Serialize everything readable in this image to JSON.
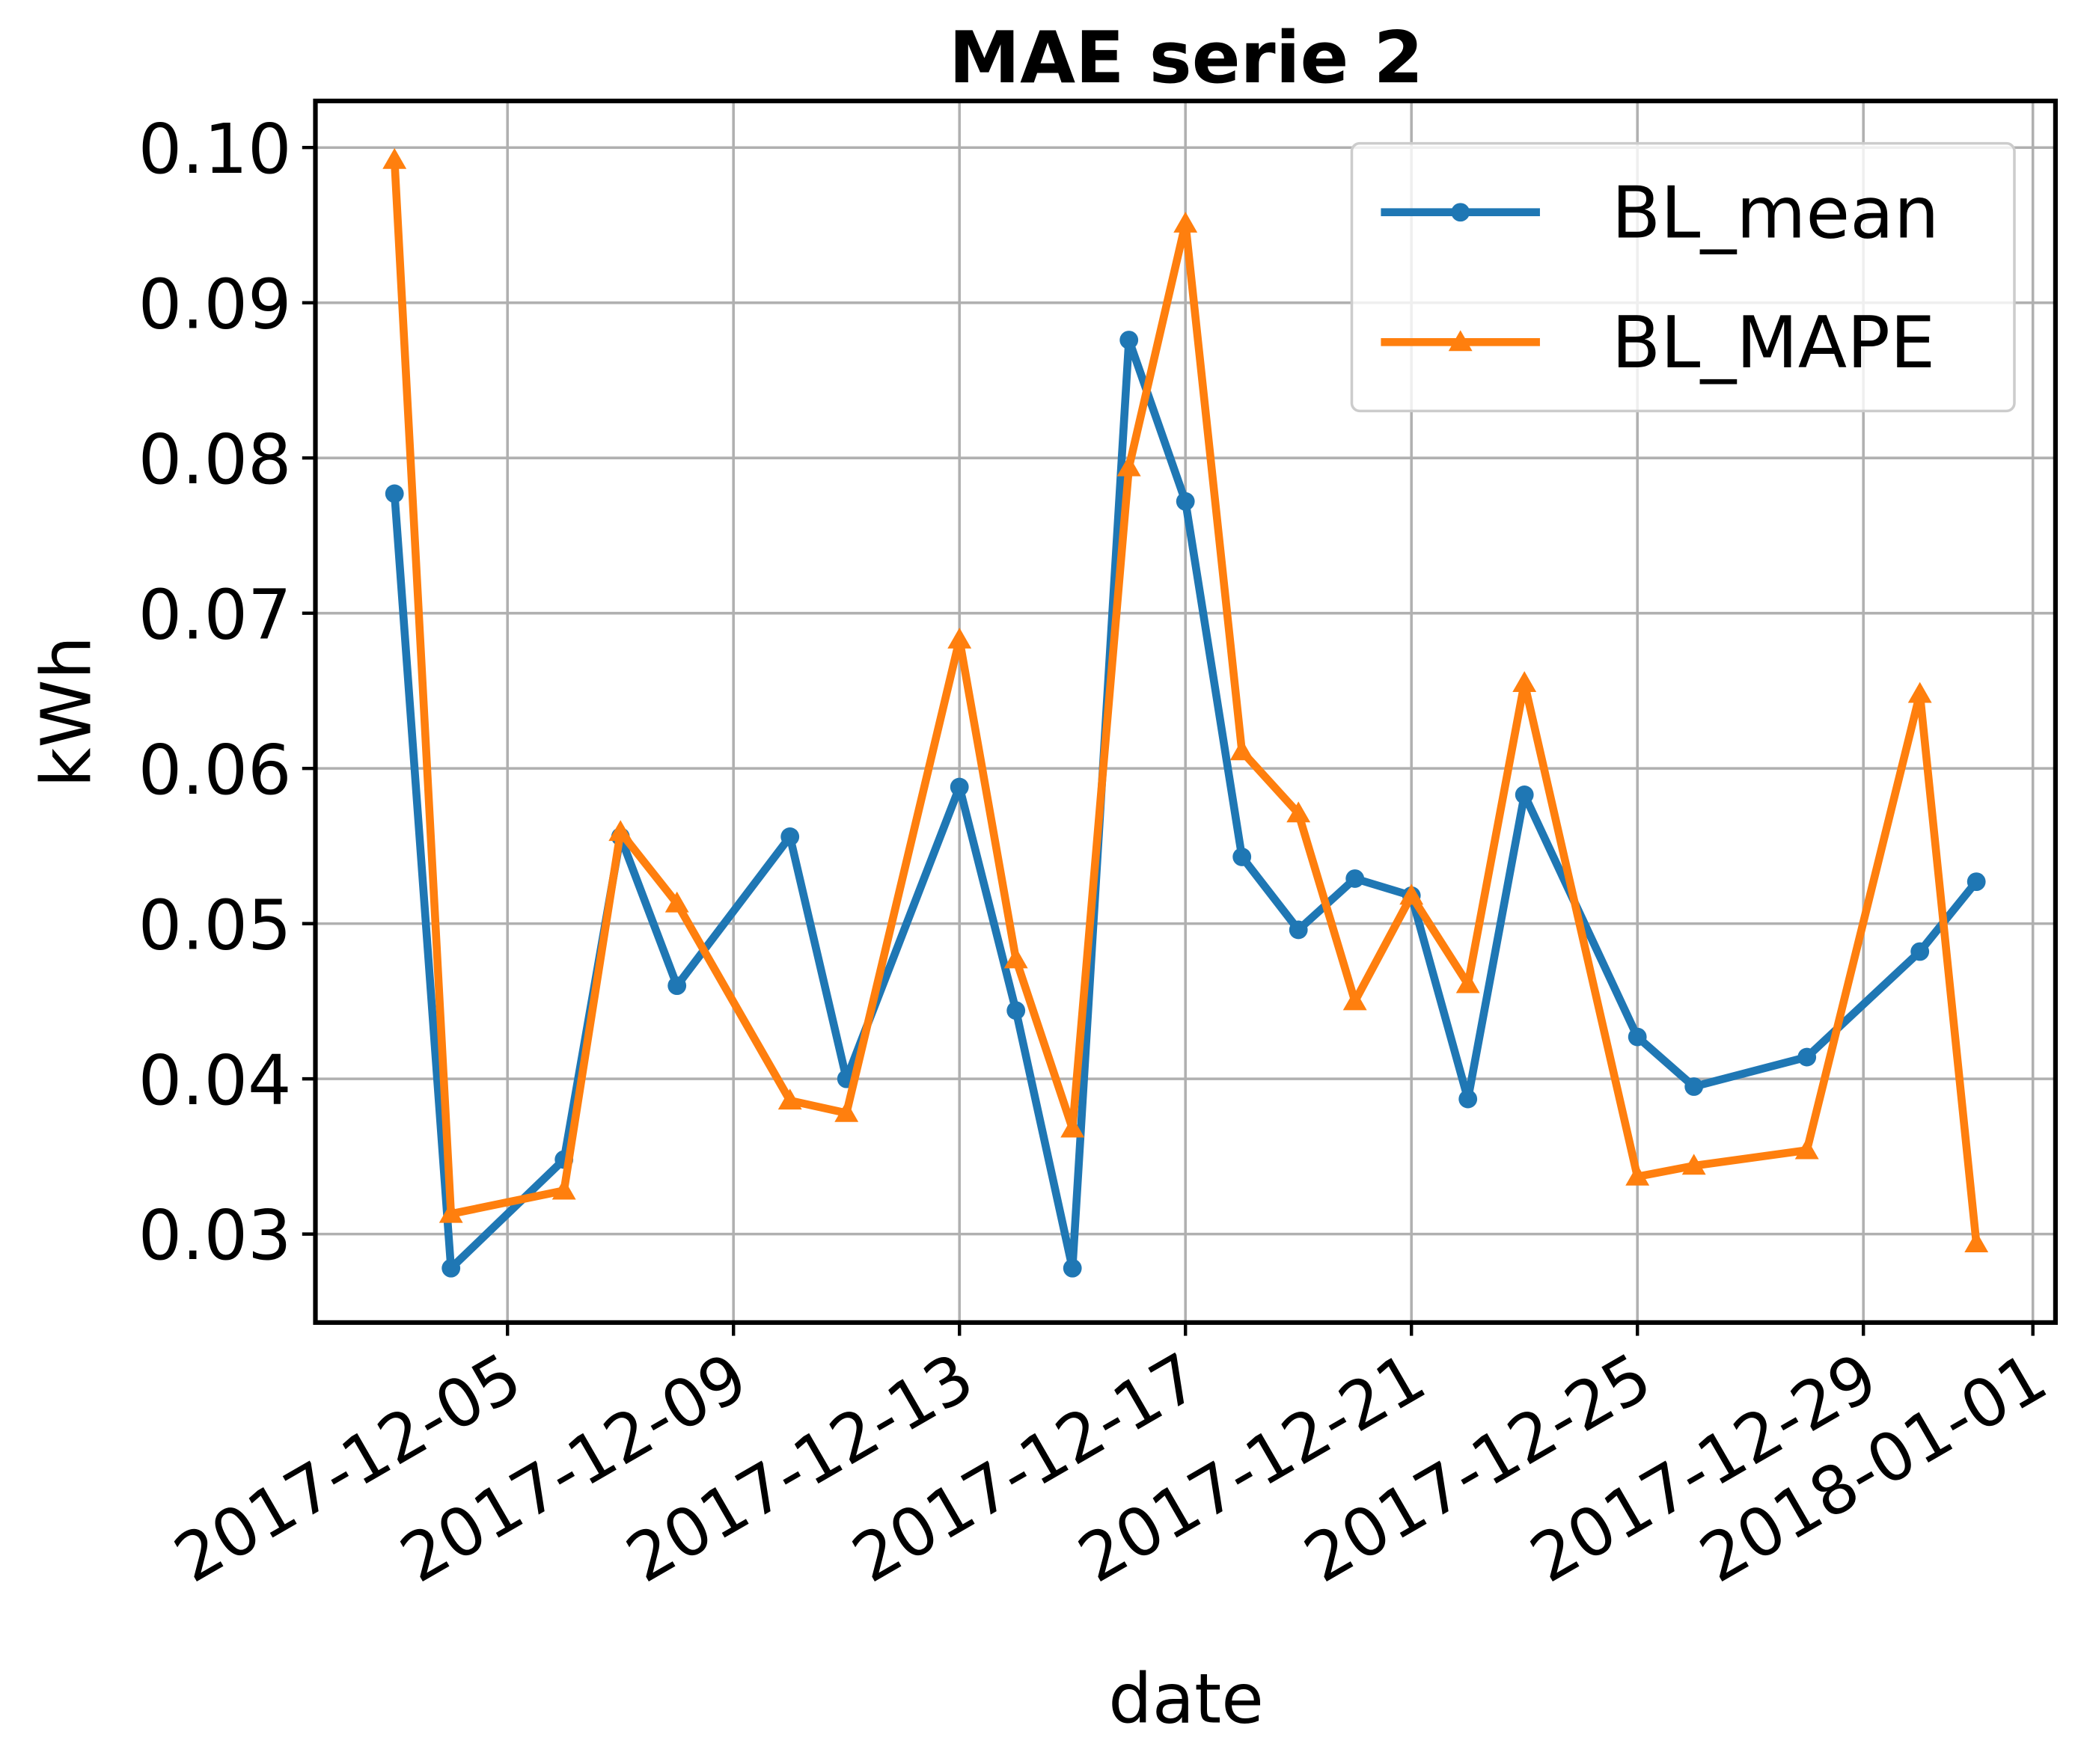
{
  "chart_data": {
    "type": "line",
    "title": "MAE serie 2",
    "xlabel": "date",
    "ylabel": "kWh",
    "x": [
      "2017-12-03",
      "2017-12-04",
      "2017-12-06",
      "2017-12-07",
      "2017-12-08",
      "2017-12-10",
      "2017-12-11",
      "2017-12-13",
      "2017-12-14",
      "2017-12-15",
      "2017-12-16",
      "2017-12-17",
      "2017-12-18",
      "2017-12-19",
      "2017-12-20",
      "2017-12-21",
      "2017-12-22",
      "2017-12-23",
      "2017-12-25",
      "2017-12-26",
      "2017-12-28",
      "2017-12-30",
      "2017-12-31"
    ],
    "series": [
      {
        "name": "BL_mean",
        "color": "#1f77b4",
        "marker": "circle",
        "values": [
          0.0777,
          0.0278,
          0.0348,
          0.0556,
          0.046,
          0.0556,
          0.04,
          0.0588,
          0.0444,
          0.0278,
          0.0876,
          0.0772,
          0.0543,
          0.0496,
          0.0529,
          0.0518,
          0.0387,
          0.0583,
          0.0427,
          0.0395,
          0.0414,
          0.0482,
          0.0527
        ]
      },
      {
        "name": "BL_MAPE",
        "color": "#ff7f0e",
        "marker": "triangle",
        "values": [
          0.0992,
          0.0313,
          0.0328,
          0.0559,
          0.0513,
          0.0386,
          0.0378,
          0.0683,
          0.0477,
          0.0368,
          0.0794,
          0.0951,
          0.0611,
          0.0571,
          0.045,
          0.0518,
          0.0461,
          0.0655,
          0.0337,
          0.0344,
          0.0354,
          0.0648,
          0.0294
        ]
      }
    ],
    "xlim": [
      "2017-12-01T14:24",
      "2018-01-01T09:36"
    ],
    "xticks": [
      "2017-12-05",
      "2017-12-09",
      "2017-12-13",
      "2017-12-17",
      "2017-12-21",
      "2017-12-25",
      "2017-12-29",
      "2018-01-01"
    ],
    "ylim": [
      0.0243,
      0.103
    ],
    "yticks": [
      0.03,
      0.04,
      0.05,
      0.06,
      0.07,
      0.08,
      0.09,
      {
        "value": 0.1,
        "label": "0.10"
      }
    ],
    "grid": true,
    "legend": "upper right"
  }
}
